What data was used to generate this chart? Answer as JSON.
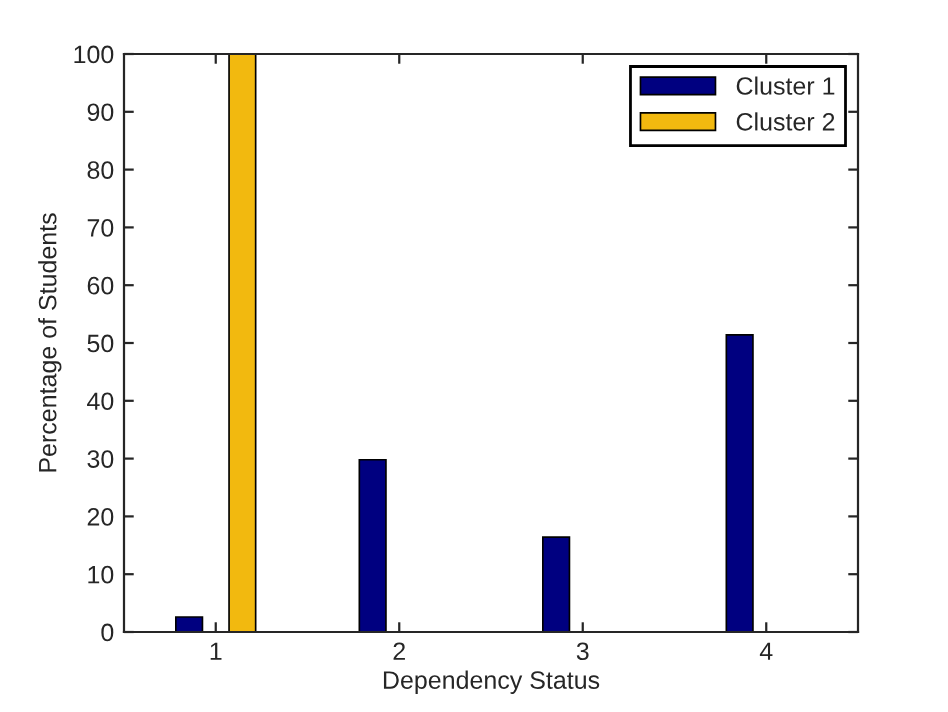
{
  "chart_data": {
    "type": "bar",
    "xlabel": "Dependency Status",
    "ylabel": "Percentage of Students",
    "categories": [
      "1",
      "2",
      "3",
      "4"
    ],
    "series": [
      {
        "name": "Cluster 1",
        "color": "#000080",
        "values": [
          2.6,
          29.8,
          16.4,
          51.4
        ]
      },
      {
        "name": "Cluster 2",
        "color": "#f2b90f",
        "values": [
          100,
          0,
          0,
          0
        ]
      }
    ],
    "ylim": [
      0,
      100
    ],
    "yticks": [
      0,
      10,
      20,
      30,
      40,
      50,
      60,
      70,
      80,
      90,
      100
    ],
    "grid": false,
    "legend": "top right"
  }
}
